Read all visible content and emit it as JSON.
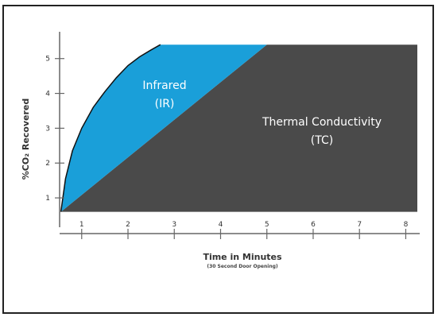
{
  "chart_data": {
    "type": "area",
    "xlabel": "Time in Minutes",
    "xlabel_sub": "(30 Second Door Opening)",
    "ylabel": "%CO₂ Recovered",
    "x_ticks": [
      1,
      2,
      3,
      4,
      5,
      6,
      7,
      8
    ],
    "y_ticks": [
      1,
      2,
      3,
      4,
      5
    ],
    "xlim": [
      0.3,
      8.25
    ],
    "ylim": [
      0.5,
      5.45
    ],
    "grid": false,
    "legend": "none",
    "series": [
      {
        "name": "Infrared",
        "sublabel": "(IR)",
        "color": "#1a9fd9",
        "x": [
          0.55,
          0.65,
          0.8,
          1.0,
          1.25,
          1.5,
          1.75,
          2.0,
          2.25,
          2.5,
          2.7
        ],
        "y": [
          0.6,
          1.55,
          2.35,
          3.0,
          3.6,
          4.05,
          4.45,
          4.8,
          5.05,
          5.25,
          5.4
        ]
      },
      {
        "name": "Thermal Conductivity",
        "sublabel": "(TC)",
        "color": "#4a4a4a",
        "x": [
          0.55,
          5.0,
          8.25
        ],
        "y": [
          0.6,
          5.4,
          5.4
        ]
      }
    ]
  }
}
